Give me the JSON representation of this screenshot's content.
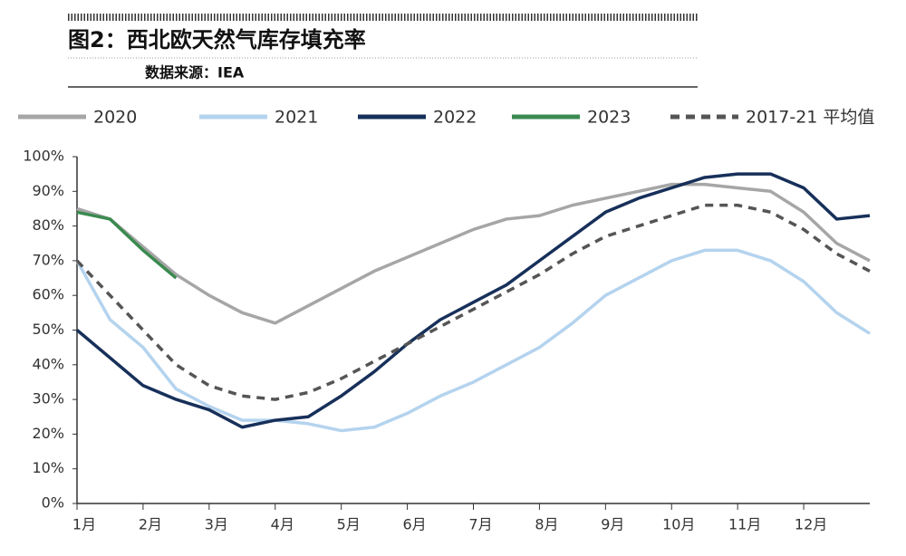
{
  "chart_data": {
    "type": "line",
    "title": "图2：西北欧天然气库存填充率",
    "subtitle": "数据来源：IEA",
    "x": [
      1,
      1.5,
      2,
      2.5,
      3,
      3.5,
      4,
      4.5,
      5,
      5.5,
      6,
      6.5,
      7,
      7.5,
      8,
      8.5,
      9,
      9.5,
      10,
      10.5,
      11,
      11.5,
      12,
      12.5,
      13
    ],
    "series": [
      {
        "name": "2020",
        "color": "#a6a6a6",
        "dash": false,
        "values": [
          85,
          82,
          74,
          66,
          60,
          55,
          52,
          57,
          62,
          67,
          71,
          75,
          79,
          82,
          83,
          86,
          88,
          90,
          92,
          92,
          91,
          90,
          84,
          75,
          70
        ]
      },
      {
        "name": "2021",
        "color": "#b4d3ee",
        "dash": false,
        "values": [
          70,
          53,
          45,
          33,
          28,
          24,
          24,
          23,
          21,
          22,
          26,
          31,
          35,
          40,
          45,
          52,
          60,
          65,
          70,
          73,
          73,
          70,
          64,
          55,
          49
        ]
      },
      {
        "name": "2022",
        "color": "#17305a",
        "dash": false,
        "values": [
          50,
          42,
          34,
          30,
          27,
          22,
          24,
          25,
          31,
          38,
          46,
          53,
          58,
          63,
          70,
          77,
          84,
          88,
          91,
          94,
          95,
          95,
          91,
          82,
          83
        ]
      },
      {
        "name": "2023",
        "color": "#3a8a4f",
        "dash": false,
        "values": [
          84,
          82,
          73,
          65,
          null,
          null,
          null,
          null,
          null,
          null,
          null,
          null,
          null,
          null,
          null,
          null,
          null,
          null,
          null,
          null,
          null,
          null,
          null,
          null,
          null
        ]
      },
      {
        "name": "2017-21 平均值",
        "color": "#555555",
        "dash": true,
        "values": [
          70,
          60,
          50,
          40,
          34,
          31,
          30,
          32,
          36,
          41,
          46,
          51,
          56,
          61,
          66,
          72,
          77,
          80,
          83,
          86,
          86,
          84,
          79,
          72,
          67
        ]
      }
    ],
    "xlim": [
      1,
      13
    ],
    "xticks": [
      {
        "value": 1,
        "label": "1月"
      },
      {
        "value": 2,
        "label": "2月"
      },
      {
        "value": 3,
        "label": "3月"
      },
      {
        "value": 4,
        "label": "4月"
      },
      {
        "value": 5,
        "label": "5月"
      },
      {
        "value": 6,
        "label": "6月"
      },
      {
        "value": 7,
        "label": "7月"
      },
      {
        "value": 8,
        "label": "8月"
      },
      {
        "value": 9,
        "label": "9月"
      },
      {
        "value": 10,
        "label": "10月"
      },
      {
        "value": 11,
        "label": "11月"
      },
      {
        "value": 12,
        "label": "12月"
      }
    ],
    "ylim": [
      0,
      100
    ],
    "yticks": [
      {
        "value": 0,
        "label": "0%"
      },
      {
        "value": 10,
        "label": "10%"
      },
      {
        "value": 20,
        "label": "20%"
      },
      {
        "value": 30,
        "label": "30%"
      },
      {
        "value": 40,
        "label": "40%"
      },
      {
        "value": 50,
        "label": "50%"
      },
      {
        "value": 60,
        "label": "60%"
      },
      {
        "value": 70,
        "label": "70%"
      },
      {
        "value": 80,
        "label": "80%"
      },
      {
        "value": 90,
        "label": "90%"
      },
      {
        "value": 100,
        "label": "100%"
      }
    ],
    "grid": false
  }
}
